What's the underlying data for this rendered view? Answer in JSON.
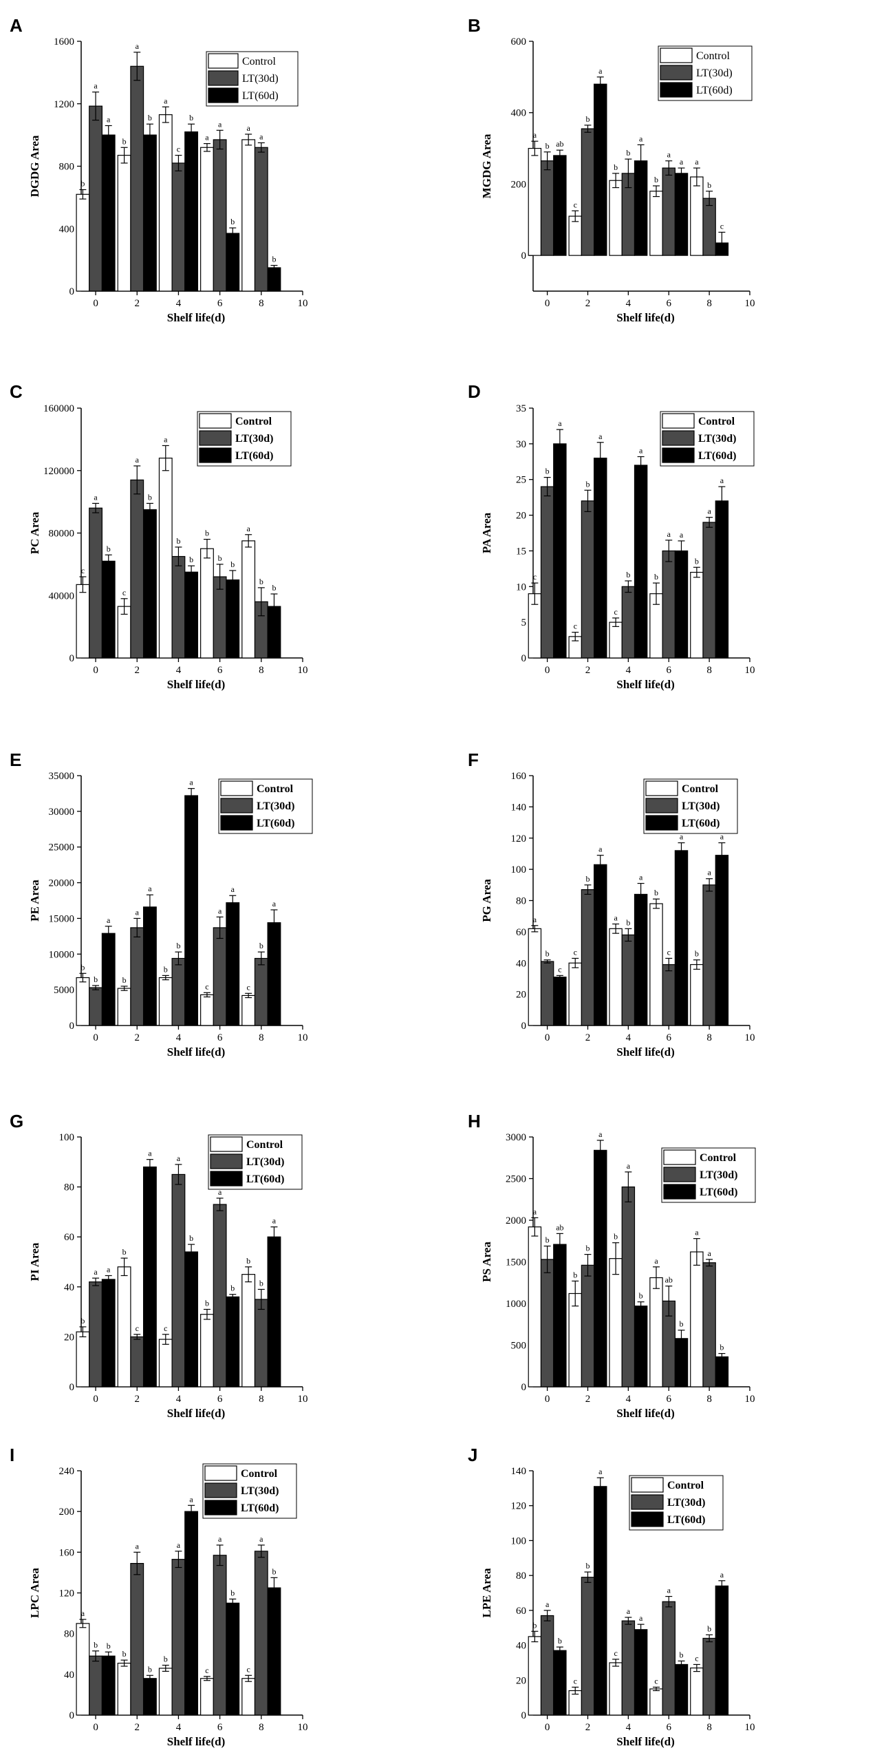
{
  "colors": {
    "Control": "#ffffff",
    "LT(30d)": "#4a4a4a",
    "LT(60d)": "#000000"
  },
  "chart_data": [
    {
      "id": "A",
      "type": "bar",
      "ylabel": "DGDG Area",
      "xlabel": "Shelf life(d)",
      "x_ticks": [
        "0",
        "2",
        "4",
        "6",
        "8",
        "10"
      ],
      "categories": [
        "0",
        "2",
        "4",
        "6",
        "8"
      ],
      "ylim": [
        0,
        1600
      ],
      "y_ticks": [
        "0",
        "400",
        "800",
        "1200",
        "1600"
      ],
      "legend": "top-right",
      "series": [
        {
          "name": "Control",
          "values": [
            620,
            870,
            1130,
            920,
            970
          ],
          "errors": [
            30,
            50,
            50,
            25,
            35
          ],
          "labels": [
            "b",
            "b",
            "a",
            "a",
            "a"
          ]
        },
        {
          "name": "LT(30d)",
          "values": [
            1185,
            1440,
            820,
            970,
            920
          ],
          "errors": [
            90,
            90,
            50,
            60,
            30
          ],
          "labels": [
            "a",
            "a",
            "c",
            "a",
            "a"
          ]
        },
        {
          "name": "LT(60d)",
          "values": [
            1000,
            1000,
            1020,
            370,
            150
          ],
          "errors": [
            60,
            70,
            50,
            35,
            15
          ],
          "labels": [
            "a",
            "b",
            "b",
            "b",
            "b"
          ]
        }
      ]
    },
    {
      "id": "B",
      "type": "bar",
      "ylabel": "MGDG Area",
      "xlabel": "Shelf life(d)",
      "x_ticks": [
        "0",
        "2",
        "4",
        "6",
        "8",
        "10"
      ],
      "categories": [
        "0",
        "2",
        "4",
        "6",
        "8"
      ],
      "ylim": [
        -100,
        600
      ],
      "y_ticks": [
        "0",
        "200",
        "400",
        "600"
      ],
      "legend": "top-right",
      "series": [
        {
          "name": "Control",
          "values": [
            300,
            110,
            210,
            180,
            220
          ],
          "errors": [
            20,
            15,
            20,
            15,
            25
          ],
          "labels": [
            "a",
            "c",
            "b",
            "b",
            "a"
          ]
        },
        {
          "name": "LT(30d)",
          "values": [
            265,
            355,
            230,
            245,
            160
          ],
          "errors": [
            25,
            10,
            40,
            20,
            20
          ],
          "labels": [
            "b",
            "b",
            "b",
            "a",
            "b"
          ]
        },
        {
          "name": "LT(60d)",
          "values": [
            280,
            480,
            265,
            230,
            35
          ],
          "errors": [
            15,
            20,
            45,
            15,
            30
          ],
          "labels": [
            "ab",
            "a",
            "a",
            "a",
            "c"
          ]
        }
      ]
    },
    {
      "id": "C",
      "type": "bar",
      "ylabel": "PC  Area",
      "xlabel": "Shelf life(d)",
      "x_ticks": [
        "0",
        "2",
        "4",
        "6",
        "8",
        "10"
      ],
      "categories": [
        "0",
        "2",
        "4",
        "6",
        "8"
      ],
      "ylim": [
        0,
        160000
      ],
      "y_ticks": [
        "0",
        "40000",
        "80000",
        "120000",
        "160000"
      ],
      "legend": "top-right",
      "series": [
        {
          "name": "Control",
          "values": [
            47000,
            33000,
            128000,
            70000,
            75000
          ],
          "errors": [
            5000,
            5000,
            8000,
            6000,
            4000
          ],
          "labels": [
            "c",
            "c",
            "a",
            "b",
            "a"
          ]
        },
        {
          "name": "LT(30d)",
          "values": [
            96000,
            114000,
            65000,
            52000,
            36000
          ],
          "errors": [
            3000,
            9000,
            6000,
            8000,
            9000
          ],
          "labels": [
            "a",
            "a",
            "b",
            "b",
            "b"
          ]
        },
        {
          "name": "LT(60d)",
          "values": [
            62000,
            95000,
            55000,
            50000,
            33000
          ],
          "errors": [
            4000,
            4000,
            4000,
            6000,
            8000
          ],
          "labels": [
            "b",
            "b",
            "b",
            "b",
            "b"
          ]
        }
      ]
    },
    {
      "id": "D",
      "type": "bar",
      "ylabel": "PA  Area",
      "xlabel": "Shelf life(d)",
      "x_ticks": [
        "0",
        "2",
        "4",
        "6",
        "8",
        "10"
      ],
      "categories": [
        "0",
        "2",
        "4",
        "6",
        "8"
      ],
      "ylim": [
        0,
        35
      ],
      "y_ticks": [
        "0",
        "5",
        "10",
        "15",
        "20",
        "25",
        "30",
        "35"
      ],
      "legend": "top-right",
      "series": [
        {
          "name": "Control",
          "values": [
            9,
            3,
            5,
            9,
            12
          ],
          "errors": [
            1.5,
            0.6,
            0.6,
            1.5,
            0.7
          ],
          "labels": [
            "c",
            "c",
            "c",
            "b",
            "b"
          ]
        },
        {
          "name": "LT(30d)",
          "values": [
            24,
            22,
            10,
            15,
            19
          ],
          "errors": [
            1.3,
            1.5,
            0.8,
            1.5,
            0.7
          ],
          "labels": [
            "b",
            "b",
            "b",
            "a",
            "a"
          ]
        },
        {
          "name": "LT(60d)",
          "values": [
            30,
            28,
            27,
            15,
            22
          ],
          "errors": [
            2.0,
            2.2,
            1.2,
            1.4,
            2.0
          ],
          "labels": [
            "a",
            "a",
            "a",
            "a",
            "a"
          ]
        }
      ]
    },
    {
      "id": "E",
      "type": "bar",
      "ylabel": "PE  Area",
      "xlabel": "Shelf life(d)",
      "x_ticks": [
        "0",
        "2",
        "4",
        "6",
        "8",
        "10"
      ],
      "categories": [
        "0",
        "2",
        "4",
        "6",
        "8"
      ],
      "ylim": [
        0,
        35000
      ],
      "y_ticks": [
        "0",
        "5000",
        "10000",
        "15000",
        "20000",
        "25000",
        "30000",
        "35000"
      ],
      "legend": "top-right",
      "series": [
        {
          "name": "Control",
          "values": [
            6700,
            5200,
            6700,
            4300,
            4200
          ],
          "errors": [
            600,
            300,
            300,
            300,
            300
          ],
          "labels": [
            "b",
            "b",
            "b",
            "c",
            "c"
          ]
        },
        {
          "name": "LT(30d)",
          "values": [
            5300,
            13700,
            9400,
            13700,
            9400
          ],
          "errors": [
            300,
            1300,
            900,
            1500,
            900
          ],
          "labels": [
            "b",
            "a",
            "b",
            "a",
            "b"
          ]
        },
        {
          "name": "LT(60d)",
          "values": [
            12900,
            16600,
            32200,
            17200,
            14400
          ],
          "errors": [
            1000,
            1700,
            1000,
            1000,
            1800
          ],
          "labels": [
            "a",
            "a",
            "a",
            "a",
            "a"
          ]
        }
      ]
    },
    {
      "id": "F",
      "type": "bar",
      "ylabel": "PG  Area",
      "xlabel": "Shelf life(d)",
      "x_ticks": [
        "0",
        "2",
        "4",
        "6",
        "8",
        "10"
      ],
      "categories": [
        "0",
        "2",
        "4",
        "6",
        "8"
      ],
      "ylim": [
        0,
        160
      ],
      "y_ticks": [
        "0",
        "20",
        "40",
        "60",
        "80",
        "100",
        "120",
        "140",
        "160"
      ],
      "legend": "top-right",
      "series": [
        {
          "name": "Control",
          "values": [
            62,
            40,
            62,
            78,
            39
          ],
          "errors": [
            2,
            3,
            3,
            3,
            3
          ],
          "labels": [
            "a",
            "c",
            "a",
            "b",
            "b"
          ]
        },
        {
          "name": "LT(30d)",
          "values": [
            41,
            87,
            58,
            39,
            90
          ],
          "errors": [
            1,
            3,
            4,
            4,
            4
          ],
          "labels": [
            "b",
            "b",
            "b",
            "c",
            "a"
          ]
        },
        {
          "name": "LT(60d)",
          "values": [
            31,
            103,
            84,
            112,
            109
          ],
          "errors": [
            1,
            6,
            7,
            5,
            8
          ],
          "labels": [
            "c",
            "a",
            "a",
            "a",
            "a"
          ]
        }
      ]
    },
    {
      "id": "G",
      "type": "bar",
      "ylabel": "PI  Area",
      "xlabel": "Shelf life(d)",
      "x_ticks": [
        "0",
        "2",
        "4",
        "6",
        "8",
        "10"
      ],
      "categories": [
        "0",
        "2",
        "4",
        "6",
        "8"
      ],
      "ylim": [
        0,
        100
      ],
      "y_ticks": [
        "0",
        "20",
        "40",
        "60",
        "80",
        "100"
      ],
      "legend": "top-right",
      "series": [
        {
          "name": "Control",
          "values": [
            22,
            48,
            19,
            29,
            45
          ],
          "errors": [
            2,
            3.5,
            2,
            2,
            3
          ],
          "labels": [
            "b",
            "b",
            "c",
            "b",
            "b"
          ]
        },
        {
          "name": "LT(30d)",
          "values": [
            42,
            20,
            85,
            73,
            35
          ],
          "errors": [
            1.5,
            1,
            4,
            2.5,
            4
          ],
          "labels": [
            "a",
            "c",
            "a",
            "a",
            "b"
          ]
        },
        {
          "name": "LT(60d)",
          "values": [
            43,
            88,
            54,
            36,
            60
          ],
          "errors": [
            1.5,
            3,
            3,
            1,
            4
          ],
          "labels": [
            "a",
            "a",
            "b",
            "b",
            "a"
          ]
        }
      ]
    },
    {
      "id": "H",
      "type": "bar",
      "ylabel": "PS  Area",
      "xlabel": "Shelf life(d)",
      "x_ticks": [
        "0",
        "2",
        "4",
        "6",
        "8",
        "10"
      ],
      "categories": [
        "0",
        "2",
        "4",
        "6",
        "8"
      ],
      "ylim": [
        0,
        3000
      ],
      "y_ticks": [
        "0",
        "500",
        "1000",
        "1500",
        "2000",
        "2500",
        "3000"
      ],
      "legend": "top-right",
      "series": [
        {
          "name": "Control",
          "values": [
            1920,
            1120,
            1540,
            1310,
            1620
          ],
          "errors": [
            110,
            150,
            190,
            130,
            160
          ],
          "labels": [
            "a",
            "b",
            "b",
            "a",
            "a"
          ]
        },
        {
          "name": "LT(30d)",
          "values": [
            1530,
            1460,
            2400,
            1030,
            1490
          ],
          "errors": [
            160,
            130,
            180,
            180,
            40
          ],
          "labels": [
            "b",
            "b",
            "a",
            "ab",
            "a"
          ]
        },
        {
          "name": "LT(60d)",
          "values": [
            1710,
            2840,
            970,
            580,
            360
          ],
          "errors": [
            130,
            120,
            50,
            100,
            40
          ],
          "labels": [
            "ab",
            "a",
            "b",
            "b",
            "b"
          ]
        }
      ]
    },
    {
      "id": "I",
      "type": "bar",
      "ylabel": "LPC  Area",
      "xlabel": "Shelf life(d)",
      "x_ticks": [
        "0",
        "2",
        "4",
        "6",
        "8",
        "10"
      ],
      "categories": [
        "0",
        "2",
        "4",
        "6",
        "8"
      ],
      "ylim": [
        0,
        240
      ],
      "y_ticks": [
        "0",
        "40",
        "80",
        "120",
        "160",
        "200",
        "240"
      ],
      "legend": "top-right",
      "series": [
        {
          "name": "Control",
          "values": [
            90,
            51,
            46,
            36,
            36
          ],
          "errors": [
            4,
            3,
            3,
            2,
            3
          ],
          "labels": [
            "a",
            "b",
            "b",
            "c",
            "c"
          ]
        },
        {
          "name": "LT(30d)",
          "values": [
            58,
            149,
            153,
            157,
            161
          ],
          "errors": [
            5,
            11,
            8,
            10,
            6
          ],
          "labels": [
            "b",
            "a",
            "a",
            "a",
            "a"
          ]
        },
        {
          "name": "LT(60d)",
          "values": [
            58,
            36,
            200,
            110,
            125
          ],
          "errors": [
            4,
            3,
            6,
            4,
            10
          ],
          "labels": [
            "b",
            "b",
            "a",
            "b",
            "b"
          ]
        }
      ]
    },
    {
      "id": "J",
      "type": "bar",
      "ylabel": "LPE  Area",
      "xlabel": "Shelf life(d)",
      "x_ticks": [
        "0",
        "2",
        "4",
        "6",
        "8",
        "10"
      ],
      "categories": [
        "0",
        "2",
        "4",
        "6",
        "8"
      ],
      "ylim": [
        0,
        140
      ],
      "y_ticks": [
        "0",
        "20",
        "40",
        "60",
        "80",
        "100",
        "120",
        "140"
      ],
      "legend": "top-right",
      "series": [
        {
          "name": "Control",
          "values": [
            45,
            14,
            30,
            15,
            27
          ],
          "errors": [
            3,
            2,
            2,
            1,
            2
          ],
          "labels": [
            "b",
            "c",
            "c",
            "c",
            "c"
          ]
        },
        {
          "name": "LT(30d)",
          "values": [
            57,
            79,
            54,
            65,
            44
          ],
          "errors": [
            3,
            3,
            2,
            3,
            2
          ],
          "labels": [
            "a",
            "b",
            "a",
            "a",
            "b"
          ]
        },
        {
          "name": "LT(60d)",
          "values": [
            37,
            131,
            49,
            29,
            74
          ],
          "errors": [
            2,
            5,
            3,
            2,
            3
          ],
          "labels": [
            "b",
            "a",
            "a",
            "b",
            "a"
          ]
        }
      ]
    }
  ]
}
